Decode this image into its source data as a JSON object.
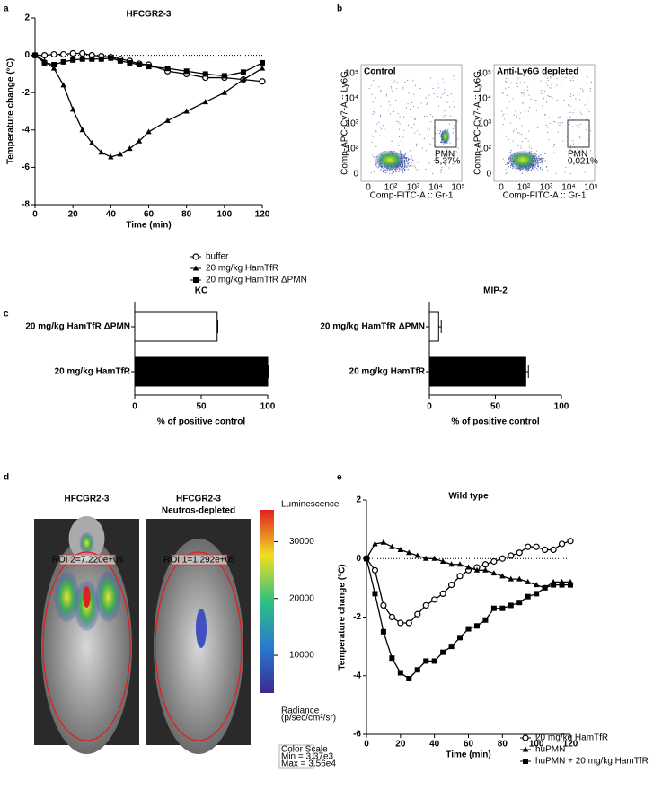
{
  "panel_labels": [
    "a",
    "b",
    "c",
    "d",
    "e"
  ],
  "chart_data": [
    {
      "type": "line",
      "title": "HFCGR2-3",
      "x_label": "Time (min)",
      "y_label": "Temperature change (°C)",
      "x": [
        0,
        5,
        10,
        15,
        20,
        25,
        30,
        35,
        40,
        45,
        50,
        55,
        60,
        70,
        80,
        90,
        100,
        110,
        120
      ],
      "series": [
        {
          "name": "buffer",
          "color": "#000000",
          "marker": "circle-open",
          "values": [
            0,
            0,
            0.05,
            0.05,
            0.1,
            0.1,
            0,
            -0.05,
            -0.1,
            -0.2,
            -0.3,
            -0.45,
            -0.5,
            -0.85,
            -1.0,
            -1.2,
            -1.2,
            -1.3,
            -1.4
          ]
        },
        {
          "name": "20 mg/kg HamTfR",
          "color": "#000000",
          "marker": "triangle",
          "values": [
            0,
            -0.3,
            -0.7,
            -1.6,
            -2.9,
            -4.0,
            -4.7,
            -5.2,
            -5.45,
            -5.3,
            -5.0,
            -4.6,
            -4.1,
            -3.5,
            -3.0,
            -2.5,
            -2.0,
            -1.3,
            -0.7
          ]
        },
        {
          "name": "20 mg/kg HamTfR ΔPMN",
          "color": "#000000",
          "marker": "square",
          "values": [
            0,
            -0.4,
            -0.5,
            -0.35,
            -0.25,
            -0.2,
            -0.2,
            -0.2,
            -0.15,
            -0.3,
            -0.4,
            -0.5,
            -0.6,
            -0.7,
            -0.85,
            -1.0,
            -1.1,
            -0.9,
            -0.4
          ]
        }
      ],
      "xlim": [
        0,
        120
      ],
      "xticks": [
        0,
        20,
        40,
        60,
        80,
        100,
        120
      ],
      "ylim": [
        -8,
        2
      ],
      "yticks": [
        -8,
        -6,
        -4,
        -2,
        0,
        2
      ],
      "hline": 0
    },
    {
      "type": "hbar",
      "title": "KC",
      "x_label": "% of positive control",
      "categories": [
        "20 mg/kg HamTfR ΔPMN",
        "20 mg/kg HamTfR"
      ],
      "values": [
        62,
        100
      ],
      "errors": [
        0.5,
        0.5
      ],
      "colors": [
        "#ffffff",
        "#000000"
      ],
      "xlim": [
        0,
        100
      ],
      "xticks": [
        0,
        50,
        100
      ]
    },
    {
      "type": "hbar",
      "title": "MIP-2",
      "x_label": "% of positive control",
      "categories": [
        "20 mg/kg HamTfR ΔPMN",
        "20 mg/kg HamTfR"
      ],
      "values": [
        7,
        73
      ],
      "errors": [
        2,
        2
      ],
      "colors": [
        "#ffffff",
        "#000000"
      ],
      "xlim": [
        0,
        100
      ],
      "xticks": [
        0,
        50,
        100
      ]
    },
    {
      "type": "line",
      "title": "Wild type",
      "x_label": "Time (min)",
      "y_label": "Temperature change (°C)",
      "x": [
        0,
        5,
        10,
        15,
        20,
        25,
        30,
        35,
        40,
        45,
        50,
        55,
        60,
        65,
        70,
        75,
        80,
        85,
        90,
        95,
        100,
        105,
        110,
        115,
        120
      ],
      "series": [
        {
          "name": "20 mg/kg HamTfR",
          "color": "#000000",
          "marker": "circle-open",
          "values": [
            0,
            -0.4,
            -1.6,
            -2.0,
            -2.2,
            -2.2,
            -1.9,
            -1.6,
            -1.4,
            -1.2,
            -0.9,
            -0.6,
            -0.4,
            -0.3,
            -0.2,
            -0.1,
            0.0,
            0.1,
            0.2,
            0.4,
            0.4,
            0.3,
            0.3,
            0.5,
            0.6
          ]
        },
        {
          "name": "huPMN",
          "color": "#000000",
          "marker": "triangle",
          "values": [
            0,
            0.5,
            0.55,
            0.4,
            0.3,
            0.2,
            0.1,
            0.0,
            0.0,
            -0.1,
            -0.2,
            -0.2,
            -0.3,
            -0.4,
            -0.4,
            -0.5,
            -0.6,
            -0.7,
            -0.7,
            -0.8,
            -0.9,
            -1.0,
            -0.8,
            -0.8,
            -0.8
          ]
        },
        {
          "name": "huPMN + 20 mg/kg HamTfR",
          "color": "#000000",
          "marker": "square",
          "values": [
            0,
            -1.2,
            -2.5,
            -3.4,
            -3.9,
            -4.1,
            -3.8,
            -3.5,
            -3.5,
            -3.2,
            -3.0,
            -2.7,
            -2.4,
            -2.3,
            -2.1,
            -1.7,
            -1.7,
            -1.6,
            -1.5,
            -1.3,
            -1.2,
            -1.0,
            -0.9,
            -0.9,
            -0.9
          ]
        }
      ],
      "xlim": [
        0,
        120
      ],
      "xticks": [
        0,
        20,
        40,
        60,
        80,
        100,
        120
      ],
      "ylim": [
        -6,
        2
      ],
      "yticks": [
        -6,
        -4,
        -2,
        0,
        2
      ],
      "hline": 0
    }
  ],
  "flow": {
    "y_label": "Comp-APC-Cy7-A :: Ly6G",
    "x_label": "Comp-FITC-A :: Gr-1",
    "x_ticks": [
      "0",
      "10²",
      "10³",
      "10⁴",
      "10⁵"
    ],
    "y_ticks": [
      "0",
      "10²",
      "10³",
      "10⁴",
      "10⁵"
    ],
    "plots": [
      {
        "title": "Control",
        "gate_label": "PMN",
        "gate_value": "5,37%"
      },
      {
        "title": "Anti-Ly6G depleted",
        "gate_label": "PMN",
        "gate_value": "0,021%"
      }
    ]
  },
  "imaging": {
    "panels": [
      {
        "title": [
          "HFCGR2-3"
        ],
        "roi": "ROI 2=7.220e+05"
      },
      {
        "title": [
          "HFCGR2-3",
          "Neutros-depleted"
        ],
        "roi": "ROI 1=1.292e+05"
      }
    ],
    "colorbar": {
      "title": "Luminescence",
      "lim": [
        3370,
        35600
      ],
      "ticks": [
        10000,
        20000,
        30000
      ],
      "unit": [
        "Radiance",
        "(p/sec/cm²/sr)"
      ],
      "scale": [
        "Color Scale",
        "Min = 3.37e3",
        "Max = 3.56e4"
      ]
    }
  }
}
